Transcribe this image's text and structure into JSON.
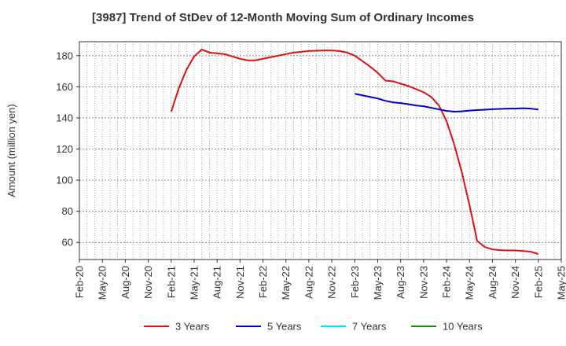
{
  "chart_data": {
    "type": "line",
    "title": "[3987]  Trend of StDev of 12-Month Moving Sum of Ordinary Incomes",
    "xlabel": "",
    "ylabel": "Amount (million yen)",
    "x_ticks": [
      "Feb-20",
      "May-20",
      "Aug-20",
      "Nov-20",
      "Feb-21",
      "May-21",
      "Aug-21",
      "Nov-21",
      "Feb-22",
      "May-22",
      "Aug-22",
      "Nov-22",
      "Feb-23",
      "May-23",
      "Aug-23",
      "Nov-23",
      "Feb-24",
      "May-24",
      "Aug-24",
      "Nov-24",
      "Feb-25",
      "May-25"
    ],
    "y_ticks": [
      60,
      80,
      100,
      120,
      140,
      160,
      180
    ],
    "ylim": [
      49,
      189
    ],
    "grid": true,
    "legend_position": "bottom",
    "series": [
      {
        "name": "3 Years",
        "color": "#dd1111",
        "points": [
          [
            "Feb-21",
            144
          ],
          [
            "Mar-21",
            159
          ],
          [
            "Apr-21",
            171
          ],
          [
            "May-21",
            179.5
          ],
          [
            "Jun-21",
            184
          ],
          [
            "Jul-21",
            182
          ],
          [
            "Aug-21",
            181.5
          ],
          [
            "Sep-21",
            181
          ],
          [
            "Oct-21",
            179.5
          ],
          [
            "Nov-21",
            178
          ],
          [
            "Dec-21",
            177
          ],
          [
            "Jan-22",
            177
          ],
          [
            "Feb-22",
            178
          ],
          [
            "Mar-22",
            179
          ],
          [
            "Apr-22",
            180
          ],
          [
            "May-22",
            181
          ],
          [
            "Jun-22",
            182
          ],
          [
            "Jul-22",
            182.5
          ],
          [
            "Aug-22",
            183
          ],
          [
            "Sep-22",
            183.2
          ],
          [
            "Oct-22",
            183.3
          ],
          [
            "Nov-22",
            183.3
          ],
          [
            "Dec-22",
            183
          ],
          [
            "Jan-23",
            182
          ],
          [
            "Feb-23",
            180
          ],
          [
            "Mar-23",
            176.5
          ],
          [
            "Apr-23",
            173
          ],
          [
            "May-23",
            169
          ],
          [
            "Jun-23",
            164
          ],
          [
            "Jul-23",
            163.5
          ],
          [
            "Aug-23",
            162
          ],
          [
            "Sep-23",
            160.5
          ],
          [
            "Oct-23",
            158.5
          ],
          [
            "Nov-23",
            156.5
          ],
          [
            "Dec-23",
            153.5
          ],
          [
            "Jan-24",
            148
          ],
          [
            "Feb-24",
            138
          ],
          [
            "Mar-24",
            123
          ],
          [
            "Apr-24",
            105
          ],
          [
            "May-24",
            84
          ],
          [
            "Jun-24",
            61
          ],
          [
            "Jul-24",
            57
          ],
          [
            "Aug-24",
            55.5
          ],
          [
            "Sep-24",
            55
          ],
          [
            "Oct-24",
            54.8
          ],
          [
            "Nov-24",
            54.8
          ],
          [
            "Dec-24",
            54.5
          ],
          [
            "Jan-25",
            54
          ],
          [
            "Feb-25",
            52.5
          ]
        ]
      },
      {
        "name": "5 Years",
        "color": "#0000cc",
        "points": [
          [
            "Feb-23",
            155.5
          ],
          [
            "Mar-23",
            154.5
          ],
          [
            "Apr-23",
            153.5
          ],
          [
            "May-23",
            152.5
          ],
          [
            "Jun-23",
            151
          ],
          [
            "Jul-23",
            150
          ],
          [
            "Aug-23",
            149.5
          ],
          [
            "Sep-23",
            148.8
          ],
          [
            "Oct-23",
            148
          ],
          [
            "Nov-23",
            147.5
          ],
          [
            "Dec-23",
            146.5
          ],
          [
            "Jan-24",
            145.5
          ],
          [
            "Feb-24",
            144.5
          ],
          [
            "Mar-24",
            144
          ],
          [
            "Apr-24",
            144.2
          ],
          [
            "May-24",
            144.7
          ],
          [
            "Jun-24",
            145
          ],
          [
            "Jul-24",
            145.3
          ],
          [
            "Aug-24",
            145.6
          ],
          [
            "Sep-24",
            145.8
          ],
          [
            "Oct-24",
            146
          ],
          [
            "Nov-24",
            146
          ],
          [
            "Dec-24",
            146.2
          ],
          [
            "Jan-25",
            146
          ],
          [
            "Feb-25",
            145.4
          ]
        ]
      },
      {
        "name": "7 Years",
        "color": "#00e5ee",
        "points": []
      },
      {
        "name": "10 Years",
        "color": "#118811",
        "points": []
      }
    ]
  }
}
